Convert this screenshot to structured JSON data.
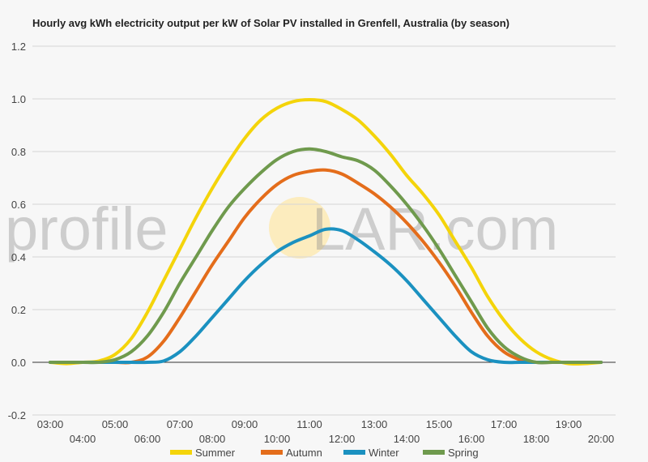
{
  "chart_data": {
    "type": "line",
    "title": "Hourly avg kWh electricity output per kW of Solar PV installed in Grenfell, Australia (by season)",
    "xlabel": "",
    "ylabel": "",
    "ylim": [
      -0.2,
      1.2
    ],
    "yticks": [
      "1.2",
      "1.0",
      "0.8",
      "0.6",
      "0.4",
      "0.2",
      "0.0",
      "-0.2"
    ],
    "xlim": [
      3,
      20
    ],
    "xticks_top": [
      "03:00",
      "05:00",
      "07:00",
      "09:00",
      "11:00",
      "13:00",
      "15:00",
      "17:00",
      "19:00"
    ],
    "xticks_bottom": [
      "04:00",
      "06:00",
      "08:00",
      "10:00",
      "12:00",
      "14:00",
      "16:00",
      "18:00",
      "20:00"
    ],
    "grid": true,
    "legend_position": "bottom",
    "x": [
      3,
      3.5,
      4,
      4.5,
      5,
      5.5,
      6,
      6.5,
      7,
      7.5,
      8,
      8.5,
      9,
      9.5,
      10,
      10.5,
      11,
      11.5,
      12,
      12.5,
      13,
      13.5,
      14,
      14.5,
      15,
      15.5,
      16,
      16.5,
      17,
      17.5,
      18,
      18.5,
      19,
      19.5,
      20
    ],
    "series": [
      {
        "name": "Summer",
        "color": "#f4d40a",
        "values": [
          0,
          -0.005,
          0,
          0.005,
          0.03,
          0.09,
          0.19,
          0.31,
          0.43,
          0.55,
          0.66,
          0.76,
          0.85,
          0.92,
          0.965,
          0.99,
          0.997,
          0.99,
          0.96,
          0.92,
          0.86,
          0.79,
          0.71,
          0.64,
          0.56,
          0.46,
          0.36,
          0.25,
          0.16,
          0.09,
          0.04,
          0.01,
          -0.005,
          -0.005,
          0
        ]
      },
      {
        "name": "Autumn",
        "color": "#e46d1b",
        "values": [
          0,
          0,
          0,
          0,
          0,
          0,
          0.02,
          0.08,
          0.17,
          0.27,
          0.37,
          0.46,
          0.55,
          0.62,
          0.675,
          0.71,
          0.725,
          0.73,
          0.715,
          0.68,
          0.64,
          0.59,
          0.53,
          0.46,
          0.38,
          0.29,
          0.19,
          0.1,
          0.04,
          0.01,
          0,
          0,
          0,
          0,
          0
        ]
      },
      {
        "name": "Winter",
        "color": "#1b91c0",
        "values": [
          0,
          0,
          0,
          0,
          0,
          0,
          0,
          0.005,
          0.04,
          0.1,
          0.17,
          0.24,
          0.31,
          0.37,
          0.42,
          0.455,
          0.48,
          0.505,
          0.5,
          0.465,
          0.42,
          0.37,
          0.31,
          0.24,
          0.17,
          0.1,
          0.04,
          0.01,
          0,
          0,
          0,
          0,
          0,
          0,
          0
        ]
      },
      {
        "name": "Spring",
        "color": "#6f9a4d",
        "values": [
          0,
          0,
          0,
          0,
          0.01,
          0.04,
          0.1,
          0.19,
          0.3,
          0.4,
          0.5,
          0.59,
          0.66,
          0.72,
          0.77,
          0.8,
          0.81,
          0.8,
          0.78,
          0.765,
          0.73,
          0.67,
          0.6,
          0.52,
          0.43,
          0.33,
          0.23,
          0.13,
          0.06,
          0.02,
          0,
          0,
          0,
          0,
          0
        ]
      }
    ]
  },
  "watermark": {
    "left": "profile",
    "right": "LAR.com",
    "sun_color": "#fde7a5"
  }
}
